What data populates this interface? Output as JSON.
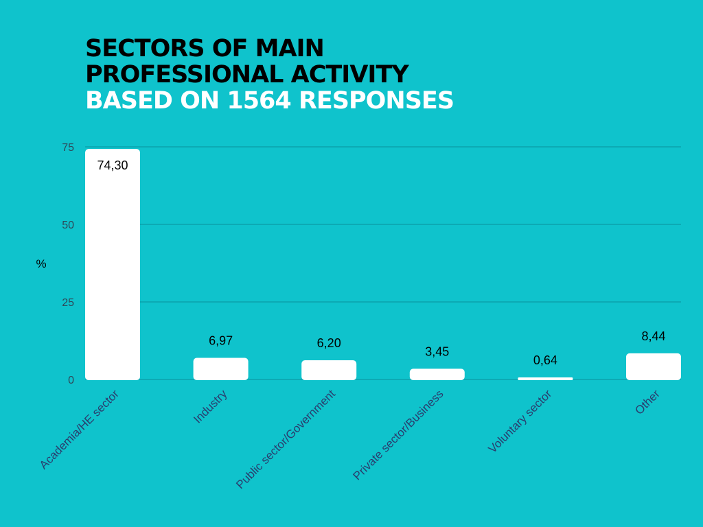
{
  "title": {
    "line1": "SECTORS OF MAIN",
    "line2": "PROFESSIONAL ACTIVITY",
    "line3": "BASED ON 1564 RESPONSES"
  },
  "chart_data": {
    "type": "bar",
    "categories": [
      "Academia/HE sector",
      "Industry",
      "Public sector/Government",
      "Private sector/Business",
      "Voluntary sector",
      "Other"
    ],
    "values": [
      74.3,
      6.97,
      6.2,
      3.45,
      0.64,
      8.44
    ],
    "value_labels": [
      "74,30",
      "6,97",
      "6,20",
      "3,45",
      "0,64",
      "8,44"
    ],
    "ylabel": "%",
    "xlabel": "",
    "ylim": [
      0,
      75
    ],
    "yticks": [
      "0",
      "25",
      "50",
      "75"
    ],
    "ytick_values": [
      0,
      25,
      50,
      75
    ],
    "grid": true,
    "colors": {
      "background": "#0fc3cc",
      "bar": "#ffffff",
      "grid": "#0a9aa6"
    }
  }
}
